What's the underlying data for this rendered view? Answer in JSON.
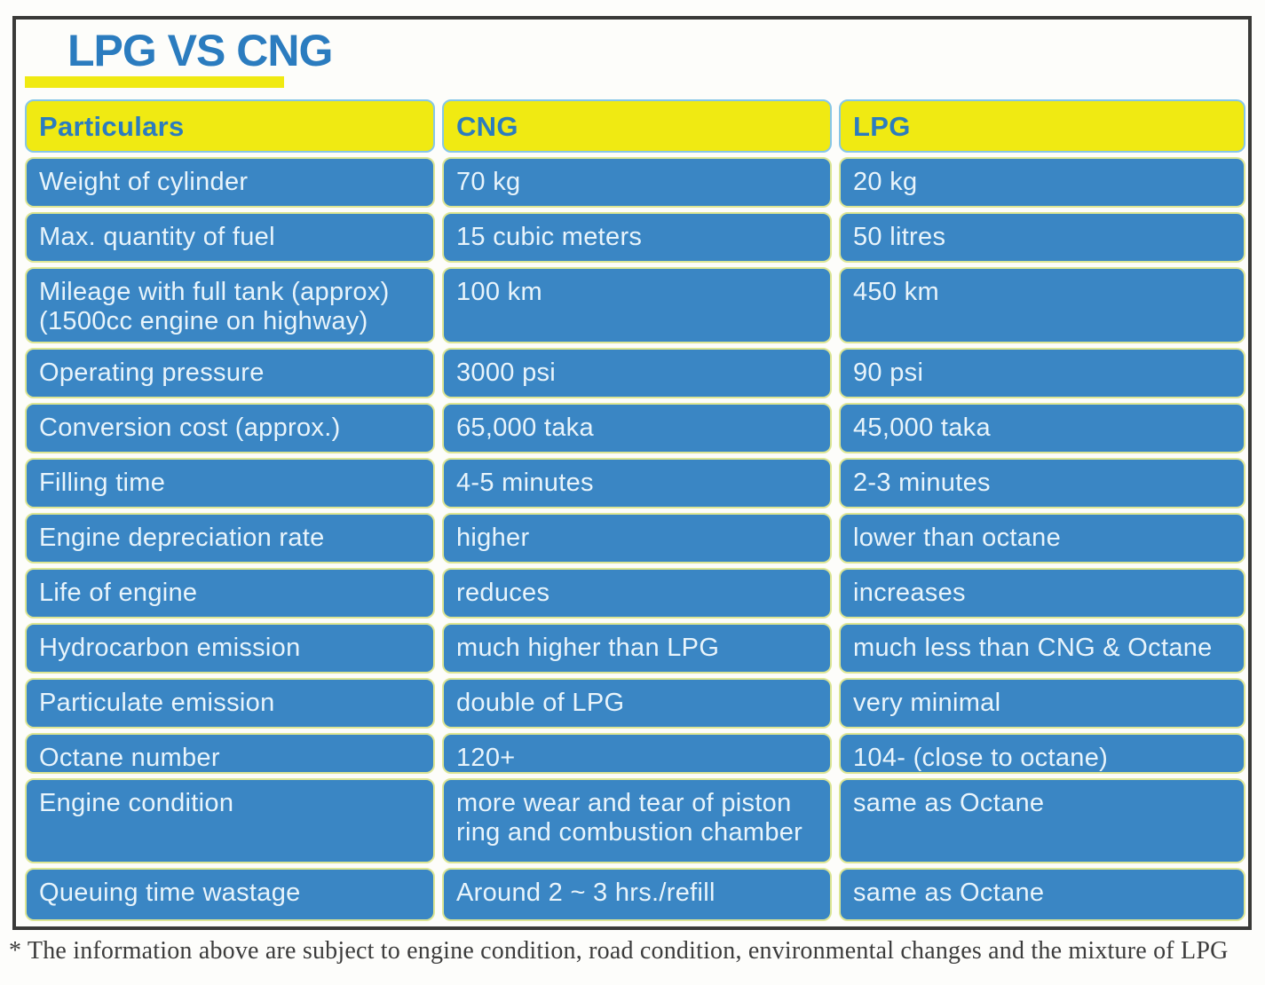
{
  "title": "LPG VS CNG",
  "footnote": "* The information above are subject to engine condition, road condition, environmental changes and the mixture of LPG",
  "table": {
    "headers": {
      "particulars": "Particulars",
      "cng": "CNG",
      "lpg": "LPG"
    },
    "rows": [
      {
        "particular": "Weight of cylinder",
        "cng": "70 kg",
        "lpg": "20 kg"
      },
      {
        "particular": "Max. quantity of fuel",
        "cng": "15 cubic meters",
        "lpg": "50 litres"
      },
      {
        "particular": "Mileage with full tank (approx)\n(1500cc engine on highway)",
        "cng": "100 km",
        "lpg": "450 km"
      },
      {
        "particular": "Operating pressure",
        "cng": "3000 psi",
        "lpg": "90 psi"
      },
      {
        "particular": "Conversion cost (approx.)",
        "cng": "65,000 taka",
        "lpg": "45,000 taka"
      },
      {
        "particular": "Filling time",
        "cng": "4-5 minutes",
        "lpg": "2-3 minutes"
      },
      {
        "particular": "Engine depreciation rate",
        "cng": "higher",
        "lpg": "lower than octane"
      },
      {
        "particular": "Life of engine",
        "cng": "reduces",
        "lpg": "increases"
      },
      {
        "particular": "Hydrocarbon emission",
        "cng": "much higher than LPG",
        "lpg": "much less than CNG & Octane"
      },
      {
        "particular": "Particulate emission",
        "cng": "double of LPG",
        "lpg": "very minimal"
      },
      {
        "particular": "Octane number",
        "cng": "120+",
        "lpg": "104- (close to octane)"
      },
      {
        "particular": "Engine condition",
        "cng": "more wear and tear of piston\nring and combustion chamber",
        "lpg": "same as Octane"
      },
      {
        "particular": "Queuing time wastage",
        "cng": "Around 2 ~ 3 hrs./refill",
        "lpg": "same as Octane"
      }
    ]
  },
  "colors": {
    "cell_blue": "#3a86c4",
    "header_yellow": "#f0ea12",
    "heading_blue": "#2b7cbf",
    "cell_text": "#e8f4fb",
    "divider_yellow": "#dde694",
    "frame_border": "#3a3a38",
    "footnote_text": "#3c3c3c"
  }
}
